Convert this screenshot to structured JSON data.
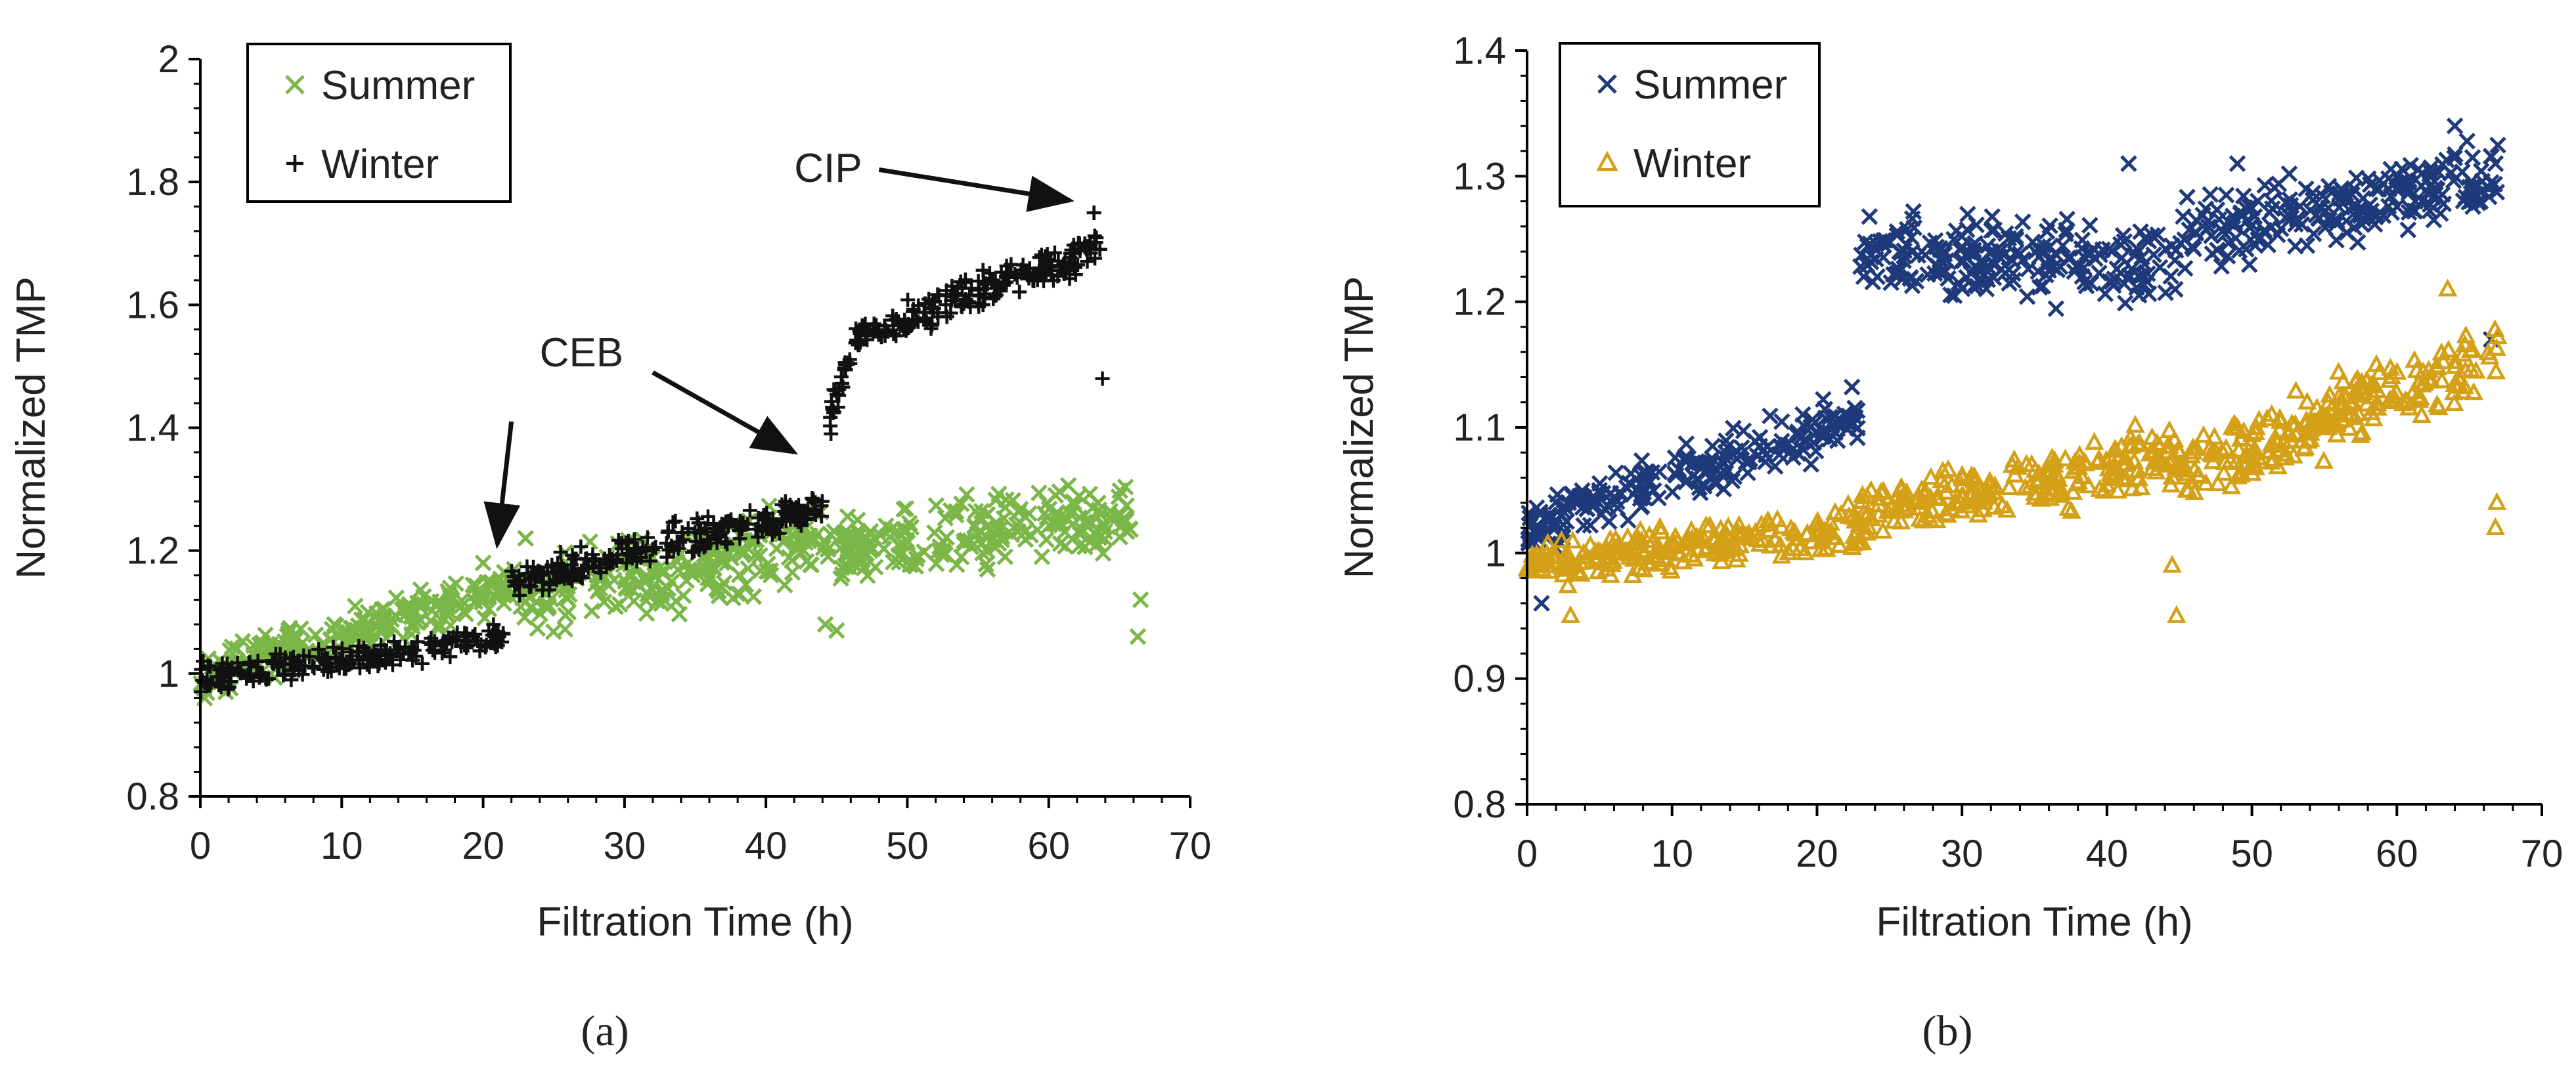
{
  "chart_data": [
    {
      "type": "scatter",
      "panel_label": "(a)",
      "xlabel": "Filtration Time (h)",
      "ylabel": "Normalized TMP",
      "xlim": [
        0,
        70
      ],
      "ylim": [
        0.8,
        2.0
      ],
      "x_ticks": [
        "0",
        "10",
        "20",
        "30",
        "40",
        "50",
        "60",
        "70"
      ],
      "y_ticks": [
        "0.8",
        "1",
        "1.2",
        "1.4",
        "1.6",
        "1.8",
        "2"
      ],
      "grid": false,
      "legend_position": "top-left",
      "annotations": [
        {
          "text": "CEB",
          "from": [
            22,
            1.41
          ],
          "to": [
            21,
            1.21
          ],
          "label_at": [
            24,
            1.5
          ]
        },
        {
          "text": "CEB",
          "from": [
            32,
            1.49
          ],
          "to": [
            42,
            1.36
          ],
          "label_at": [
            24,
            1.5
          ]
        },
        {
          "text": "CIP",
          "from": [
            48,
            1.82
          ],
          "to": [
            61.5,
            1.77
          ],
          "label_at": [
            42,
            1.8
          ]
        }
      ],
      "series": [
        {
          "name": "Summer",
          "marker": "x",
          "color": "#7ab648",
          "segments": [
            {
              "x_start": 0,
              "x_end": 22,
              "count": 220,
              "y_start": 1.0,
              "y_end": 1.14,
              "spread": 0.05
            },
            {
              "x_start": 22,
              "x_end": 44,
              "count": 220,
              "y_start": 1.12,
              "y_end": 1.22,
              "spread": 0.09
            },
            {
              "x_start": 44,
              "x_end": 66,
              "count": 210,
              "y_start": 1.19,
              "y_end": 1.26,
              "spread": 0.08
            }
          ],
          "points": [
            [
              0.3,
              0.96
            ],
            [
              1.8,
              0.97
            ],
            [
              44.2,
              1.08
            ],
            [
              45,
              1.07
            ],
            [
              66.3,
              1.06
            ],
            [
              66.5,
              1.12
            ],
            [
              20,
              1.18
            ],
            [
              23,
              1.22
            ]
          ]
        },
        {
          "name": "Winter",
          "marker": "+",
          "color": "#111111",
          "segments": [
            {
              "x_start": 0,
              "x_end": 22,
              "count": 210,
              "y_start": 0.99,
              "y_end": 1.06,
              "spread": 0.035
            },
            {
              "x_start": 22,
              "x_end": 44,
              "count": 220,
              "y_start": 1.15,
              "y_end": 1.27,
              "spread": 0.04
            },
            {
              "x_start": 44.5,
              "x_end": 46,
              "count": 25,
              "y_start": 1.42,
              "y_end": 1.52,
              "spread": 0.05
            },
            {
              "x_start": 46,
              "x_end": 64,
              "count": 200,
              "y_start": 1.54,
              "y_end": 1.7,
              "spread": 0.045
            }
          ],
          "points": [
            [
              63.8,
              1.48
            ],
            [
              0.2,
              1.02
            ],
            [
              44.6,
              1.39
            ],
            [
              63.2,
              1.75
            ]
          ]
        }
      ]
    },
    {
      "type": "scatter",
      "panel_label": "(b)",
      "xlabel": "Filtration Time (h)",
      "ylabel": "Normalized TMP",
      "xlim": [
        0,
        70
      ],
      "ylim": [
        0.8,
        1.4
      ],
      "x_ticks": [
        "0",
        "10",
        "20",
        "30",
        "40",
        "50",
        "60",
        "70"
      ],
      "y_ticks": [
        "0.8",
        "0.9",
        "1",
        "1.1",
        "1.2",
        "1.3",
        "1.4"
      ],
      "grid": false,
      "legend_position": "top-left",
      "series": [
        {
          "name": "Summer",
          "marker": "x",
          "color": "#1f3a7a",
          "segments": [
            {
              "x_start": 0,
              "x_end": 23,
              "count": 230,
              "y_start": 1.02,
              "y_end": 1.11,
              "spread": 0.03
            },
            {
              "x_start": 23,
              "x_end": 45,
              "count": 220,
              "y_start": 1.24,
              "y_end": 1.23,
              "spread": 0.045
            },
            {
              "x_start": 45,
              "x_end": 67,
              "count": 220,
              "y_start": 1.25,
              "y_end": 1.3,
              "spread": 0.04
            }
          ],
          "points": [
            [
              1,
              0.96
            ],
            [
              41.5,
              1.31
            ],
            [
              49,
              1.31
            ],
            [
              64,
              1.34
            ],
            [
              66.5,
              1.17
            ],
            [
              66.8,
              1.31
            ]
          ]
        },
        {
          "name": "Winter",
          "marker": "triangle",
          "color": "#d4a017",
          "segments": [
            {
              "x_start": 0,
              "x_end": 23,
              "count": 220,
              "y_start": 0.99,
              "y_end": 1.02,
              "spread": 0.025
            },
            {
              "x_start": 23,
              "x_end": 45,
              "count": 220,
              "y_start": 1.03,
              "y_end": 1.08,
              "spread": 0.035
            },
            {
              "x_start": 45,
              "x_end": 67,
              "count": 220,
              "y_start": 1.06,
              "y_end": 1.16,
              "spread": 0.04
            }
          ],
          "points": [
            [
              44.8,
              0.95
            ],
            [
              44.5,
              0.99
            ],
            [
              66.8,
              1.02
            ],
            [
              66.9,
              1.04
            ],
            [
              3,
              0.95
            ],
            [
              63.5,
              1.21
            ]
          ]
        }
      ]
    }
  ],
  "panels": [
    {
      "label": "(a)"
    },
    {
      "label": "(b)"
    }
  ]
}
